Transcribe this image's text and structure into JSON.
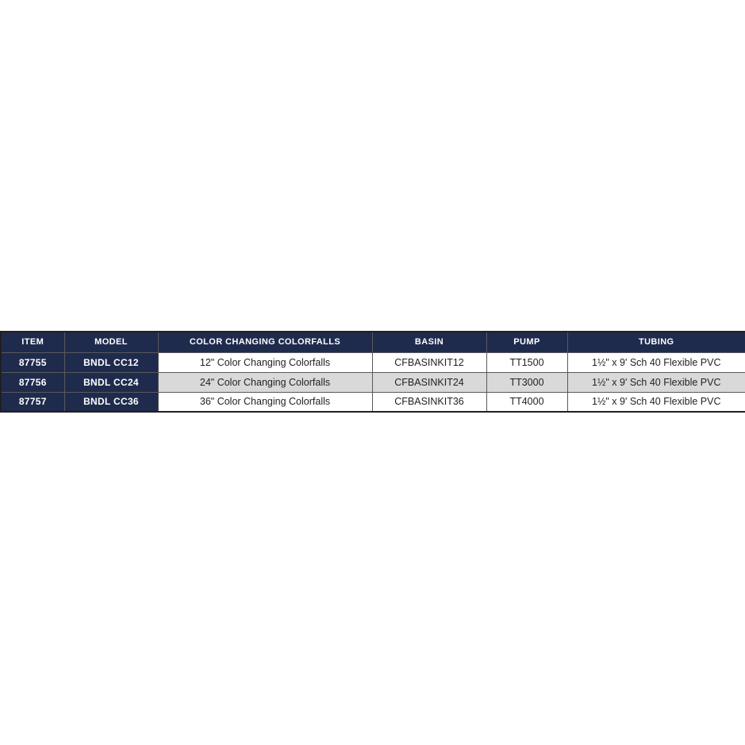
{
  "colors": {
    "navy": "#1f2b4d",
    "stripe": "#d9d9d9",
    "border-inner": "#58595b",
    "border-outer": "#231f20",
    "text-dark": "#231f20",
    "text-light": "#ffffff",
    "page-bg": "#ffffff"
  },
  "table": {
    "columns": [
      {
        "key": "item",
        "label": "ITEM"
      },
      {
        "key": "model",
        "label": "MODEL"
      },
      {
        "key": "cfalls",
        "label": "COLOR CHANGING COLORFALLS"
      },
      {
        "key": "basin",
        "label": "BASIN"
      },
      {
        "key": "pump",
        "label": "PUMP"
      },
      {
        "key": "tubing",
        "label": "TUBING"
      }
    ],
    "rows": [
      {
        "item": "87755",
        "model": "BNDL CC12",
        "cfalls": "12\" Color Changing Colorfalls",
        "basin": "CFBASINKIT12",
        "pump": "TT1500",
        "tubing": "1½\" x 9' Sch 40 Flexible PVC"
      },
      {
        "item": "87756",
        "model": "BNDL CC24",
        "cfalls": "24\" Color Changing Colorfalls",
        "basin": "CFBASINKIT24",
        "pump": "TT3000",
        "tubing": "1½\" x 9' Sch 40 Flexible PVC"
      },
      {
        "item": "87757",
        "model": "BNDL CC36",
        "cfalls": "36\" Color Changing Colorfalls",
        "basin": "CFBASINKIT36",
        "pump": "TT4000",
        "tubing": "1½\" x 9' Sch 40 Flexible PVC"
      }
    ]
  }
}
